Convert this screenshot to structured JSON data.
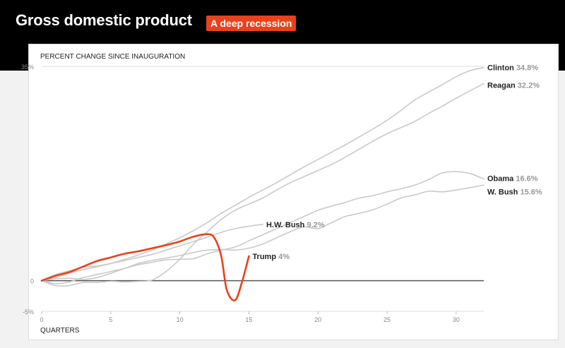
{
  "header": {
    "title": "Gross domestic product",
    "badge": "A deep recession",
    "badge_color": "#e8421c",
    "background": "#000000"
  },
  "chart_data": {
    "type": "line",
    "ylabel": "PERCENT CHANGE SINCE INAUGURATION",
    "xlabel": "QUARTERS",
    "xlim": [
      0,
      32
    ],
    "ylim": [
      -5,
      35
    ],
    "xticks": [
      0,
      5,
      10,
      15,
      20,
      25,
      30
    ],
    "yticks": [
      {
        "value": 35,
        "label": "35%"
      },
      {
        "value": 0,
        "label": "0"
      },
      {
        "value": -5,
        "label": "-5%"
      }
    ],
    "grid": "horizontal",
    "zero_line": true,
    "series": [
      {
        "name": "Clinton",
        "label": "34.8%",
        "color": "#c9c9c9",
        "highlight": false,
        "x": [
          0,
          1,
          2,
          3,
          4,
          5,
          6,
          7,
          8,
          9,
          10,
          11,
          12,
          13,
          14,
          15,
          16,
          17,
          18,
          19,
          20,
          21,
          22,
          23,
          24,
          25,
          26,
          27,
          28,
          29,
          30,
          31,
          32
        ],
        "y": [
          0,
          0.5,
          1.2,
          1.8,
          2.3,
          2.8,
          3.5,
          4.2,
          5.0,
          6.0,
          7.0,
          8.2,
          9.5,
          11.0,
          12.3,
          13.6,
          14.8,
          16.0,
          17.3,
          18.6,
          19.8,
          21.0,
          22.2,
          23.5,
          24.8,
          26.2,
          27.8,
          29.5,
          30.8,
          32.0,
          33.3,
          34.3,
          34.8
        ]
      },
      {
        "name": "Reagan",
        "label": "32.2%",
        "color": "#c9c9c9",
        "highlight": false,
        "x": [
          0,
          1,
          2,
          3,
          4,
          5,
          6,
          7,
          8,
          9,
          10,
          11,
          12,
          13,
          14,
          15,
          16,
          17,
          18,
          19,
          20,
          21,
          22,
          23,
          24,
          25,
          26,
          27,
          28,
          29,
          30,
          31,
          32
        ],
        "y": [
          0,
          -0.8,
          -0.8,
          -0.3,
          -0.3,
          -0.1,
          -0.2,
          -0.1,
          0.1,
          1.5,
          3.5,
          6.0,
          8.0,
          10.0,
          11.5,
          12.5,
          13.5,
          14.8,
          16.0,
          17.0,
          18.0,
          19.0,
          20.2,
          21.5,
          22.8,
          24.0,
          25.0,
          26.0,
          27.3,
          28.5,
          29.8,
          31.0,
          32.2
        ]
      },
      {
        "name": "Obama",
        "label": "16.6%",
        "color": "#c9c9c9",
        "highlight": false,
        "x": [
          0,
          1,
          2,
          3,
          4,
          5,
          6,
          7,
          8,
          9,
          10,
          11,
          12,
          13,
          14,
          15,
          16,
          17,
          18,
          19,
          20,
          21,
          22,
          23,
          24,
          25,
          26,
          27,
          28,
          29,
          30,
          31,
          32
        ],
        "y": [
          0,
          -0.5,
          -0.2,
          0.5,
          1.0,
          1.5,
          2.0,
          2.6,
          3.0,
          3.4,
          3.5,
          3.6,
          4.4,
          5.0,
          5.5,
          6.5,
          7.5,
          8.5,
          9.5,
          10.5,
          11.5,
          12.2,
          12.8,
          13.5,
          13.9,
          14.5,
          15.0,
          15.6,
          16.5,
          17.6,
          17.8,
          17.5,
          16.6
        ]
      },
      {
        "name": "W. Bush",
        "label": "15.6%",
        "color": "#c9c9c9",
        "highlight": false,
        "x": [
          0,
          1,
          2,
          3,
          4,
          5,
          6,
          7,
          8,
          9,
          10,
          11,
          12,
          13,
          14,
          15,
          16,
          17,
          18,
          19,
          20,
          21,
          22,
          23,
          24,
          25,
          26,
          27,
          28,
          29,
          30,
          31,
          32
        ],
        "y": [
          0,
          0.3,
          0.4,
          0.2,
          0.5,
          1.2,
          2.0,
          2.8,
          3.3,
          3.7,
          4.1,
          4.6,
          5.0,
          5.1,
          5.0,
          5.3,
          6.0,
          7.0,
          8.0,
          8.8,
          8.5,
          9.5,
          10.5,
          11.0,
          11.6,
          12.5,
          13.5,
          14.0,
          14.6,
          14.5,
          14.8,
          15.2,
          15.6
        ]
      },
      {
        "name": "H.W. Bush",
        "label": "9.2%",
        "color": "#c9c9c9",
        "highlight": false,
        "x": [
          0,
          1,
          2,
          3,
          4,
          5,
          6,
          7,
          8,
          9,
          10,
          11,
          12,
          13,
          14,
          15,
          16
        ],
        "y": [
          0,
          1.0,
          1.6,
          2.2,
          2.4,
          2.8,
          3.3,
          3.8,
          4.3,
          5.0,
          5.7,
          6.4,
          7.1,
          7.9,
          8.5,
          8.9,
          9.2
        ]
      },
      {
        "name": "Trump",
        "label": "4%",
        "color": "#e8421c",
        "highlight": true,
        "x": [
          0,
          1,
          2,
          3,
          4,
          5,
          6,
          7,
          8,
          9,
          10,
          11,
          12,
          12.5,
          13,
          13.4,
          14,
          14.5,
          15
        ],
        "y": [
          0,
          0.8,
          1.4,
          2.3,
          3.2,
          3.8,
          4.4,
          4.8,
          5.3,
          5.8,
          6.4,
          7.2,
          7.6,
          7.0,
          4.0,
          -1.5,
          -3.2,
          -0.2,
          4.0
        ]
      }
    ],
    "axis_color": "#555555",
    "grid_color": "#dddddd"
  }
}
